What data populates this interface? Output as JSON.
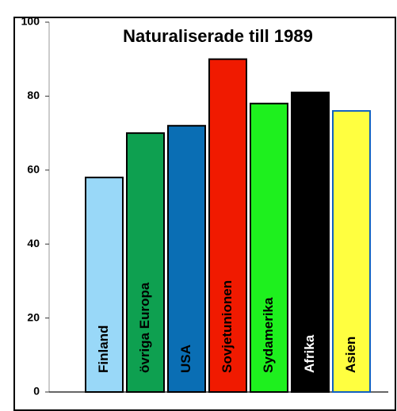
{
  "chart_data": {
    "type": "bar",
    "title": "Naturaliserade till 1989",
    "categories": [
      "Finland",
      "övriga Europa",
      "USA",
      "Sovjetunionen",
      "Sydamerika",
      "Afrika",
      "Asien"
    ],
    "values": [
      58,
      70,
      72,
      90,
      78,
      81,
      76
    ],
    "colors": [
      "#99d8f8",
      "#0ea050",
      "#0a6eb4",
      "#f01a00",
      "#1ef01e",
      "#000000",
      "#ffff40"
    ],
    "edge_colors": [
      "#000000",
      "#000000",
      "#000000",
      "#000000",
      "#000000",
      "#000000",
      "#1060c0"
    ],
    "label_colors": [
      "#000000",
      "#000000",
      "#000000",
      "#000000",
      "#000000",
      "#ffffff",
      "#000000"
    ],
    "ylim": [
      0,
      100
    ],
    "yticks": [
      0,
      20,
      40,
      60,
      80,
      100
    ]
  }
}
